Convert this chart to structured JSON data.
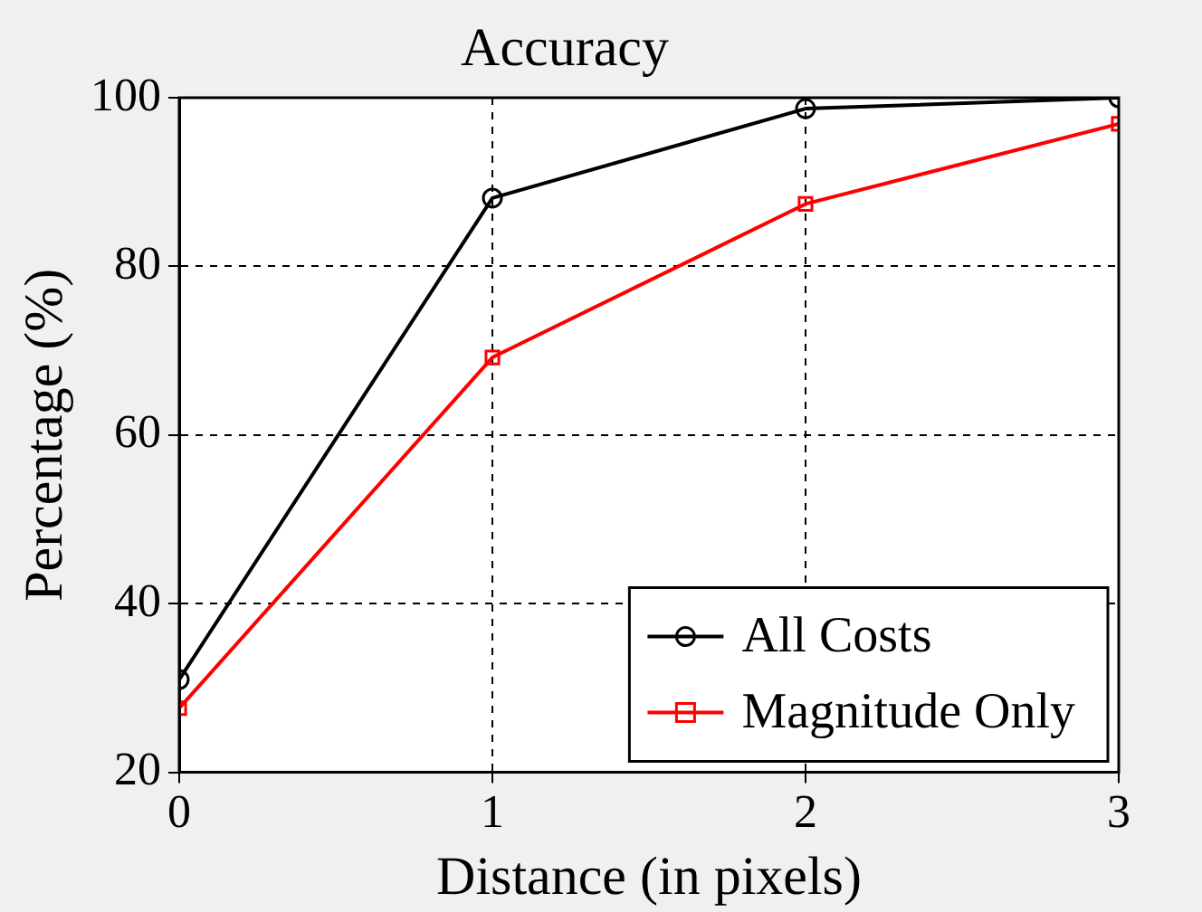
{
  "chart_data": {
    "type": "line",
    "title": "Accuracy",
    "xlabel": "Distance (in pixels)",
    "ylabel": "Percentage (%)",
    "x": [
      0,
      1,
      2,
      3
    ],
    "series": [
      {
        "name": "All Costs",
        "color": "#000000",
        "marker": "circle",
        "values": [
          31,
          88.1,
          98.7,
          100
        ]
      },
      {
        "name": "Magnitude Only",
        "color": "#ff0000",
        "marker": "square",
        "values": [
          27.6,
          69.2,
          87.4,
          96.9
        ]
      }
    ],
    "xlim": [
      0,
      3
    ],
    "xticks": [
      0,
      1,
      2,
      3
    ],
    "ylim": [
      20,
      100
    ],
    "yticks": [
      20,
      40,
      60,
      80,
      100
    ],
    "grid": true,
    "legend": "bottom right",
    "line_style": "solid"
  }
}
